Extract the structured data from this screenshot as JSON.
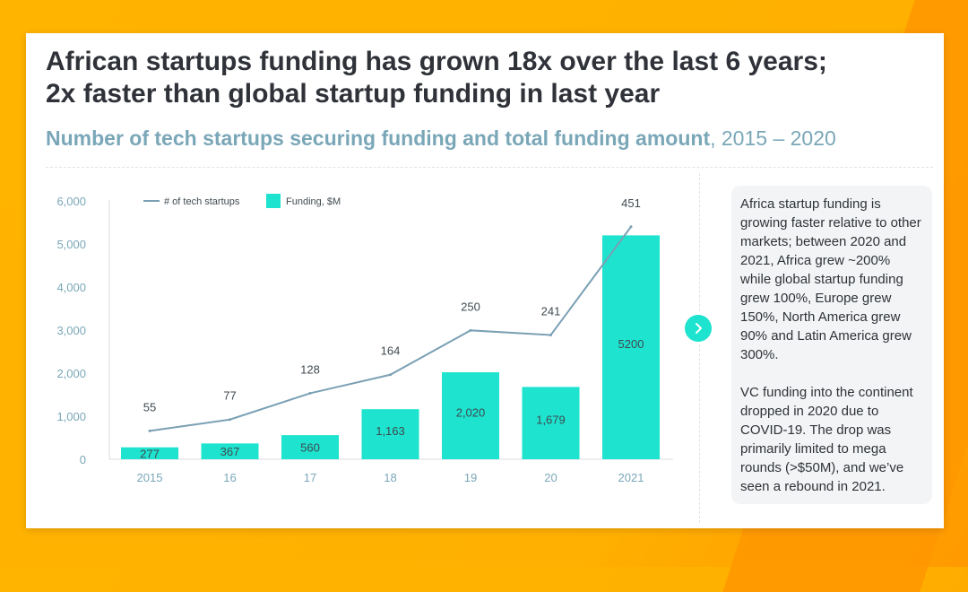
{
  "title": "African startups funding has grown 18x over the last 6 years; 2x faster than global startup funding in last year",
  "subtitle": {
    "bold": "Number of tech startups securing funding and total funding amount",
    "rest": ", 2015 – 2020"
  },
  "side_text": [
    "Africa startup funding is growing faster relative to other markets; between 2020 and 2021, Africa grew ~200% while global startup funding grew 100%, Europe grew 150%, North America grew 90% and Latin America grew 300%.",
    "VC funding into the continent dropped in 2020 due to COVID-19. The drop was primarily limited to mega rounds (>$50M), and we’ve seen a rebound in 2021."
  ],
  "next_icon": "chevron-right-icon",
  "colors": {
    "bar": "#1de3cf",
    "line": "#7aa0b4",
    "axis_text": "#7aa7b8",
    "title": "#2f3238"
  },
  "chart_data": {
    "type": "bar",
    "categories": [
      "2015",
      "16",
      "17",
      "18",
      "19",
      "20",
      "2021"
    ],
    "ylim": [
      0,
      6000
    ],
    "yticks": [
      "0",
      "1,000",
      "2,000",
      "3,000",
      "4,000",
      "5,000",
      "6,000"
    ],
    "series": [
      {
        "name": "Funding, $M",
        "type": "bar",
        "values": [
          277,
          367,
          560,
          1163,
          2020,
          1679,
          5200
        ],
        "labels": [
          "277",
          "367",
          "560",
          "1,163",
          "2,020",
          "1,679",
          "5200"
        ]
      },
      {
        "name": "# of tech startups",
        "type": "line",
        "values": [
          55,
          77,
          128,
          164,
          250,
          241,
          451
        ],
        "labels": [
          "55",
          "77",
          "128",
          "164",
          "250",
          "241",
          "451"
        ]
      }
    ]
  }
}
